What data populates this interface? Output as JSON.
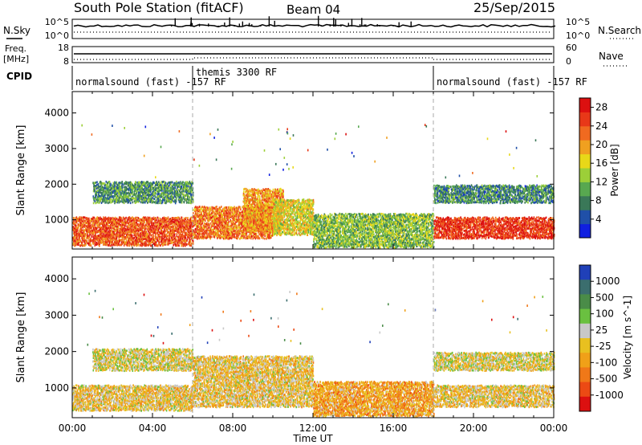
{
  "header": {
    "station": "South Pole Station (fitACF)",
    "beam": "Beam 04",
    "date": "25/Sep/2015"
  },
  "strip_labels": {
    "nsky": "N.Sky",
    "nsky_top": "10^5",
    "nsky_bottom": "10^0",
    "nsearch": "N.Search",
    "nsearch_top": "10^5",
    "nsearch_bottom": "10^0",
    "freq_line1": "Freq.",
    "freq_line2": "[MHz]",
    "freq_top": "18",
    "freq_bottom": "8",
    "nave": "Nave",
    "nave_top": "60",
    "nave_bottom": "0",
    "cpid": "CPID"
  },
  "cpid_segments": [
    {
      "label": "normalsound (fast) -157 RF",
      "start_hour": 0
    },
    {
      "label": "themis 3300 RF",
      "start_hour": 6
    },
    {
      "label": "normalsound (fast) -157 RF",
      "start_hour": 18
    }
  ],
  "axis": {
    "xlabel": "Time UT",
    "ylabel": "Slant Range [km]",
    "x_ticks": [
      "00:00",
      "04:00",
      "08:00",
      "12:00",
      "16:00",
      "20:00",
      "00:00"
    ],
    "y_ticks": [
      "1000",
      "2000",
      "3000",
      "4000"
    ]
  },
  "colorbars": {
    "power": {
      "label": "Power [dB]",
      "ticks": [
        "4",
        "8",
        "12",
        "16",
        "20",
        "24",
        "28"
      ],
      "colors": [
        "#1020e0",
        "#2050a8",
        "#3a7858",
        "#58a850",
        "#9ccf38",
        "#e8d818",
        "#f0a020",
        "#f06a20",
        "#e83818",
        "#dc1010"
      ]
    },
    "velocity": {
      "label": "Velocity [m s^-1]",
      "ticks": [
        "1000",
        "500",
        "100",
        "25",
        "-25",
        "-100",
        "-500",
        "-1000"
      ],
      "colors": [
        "#2040b8",
        "#3b6e6e",
        "#4a8c48",
        "#6ac040",
        "#c8c8c8",
        "#e8c020",
        "#f0a018",
        "#f07818",
        "#ec4a14",
        "#dc1010"
      ]
    }
  },
  "chart_data": [
    {
      "type": "heatmap",
      "title": "Power",
      "xlabel": "Time UT",
      "ylabel": "Slant Range [km]",
      "xlim": [
        0,
        24
      ],
      "ylim": [
        180,
        4600
      ],
      "colorbar_range": [
        0,
        30
      ],
      "regions": [
        {
          "hours": [
            0,
            6
          ],
          "range_km": [
            300,
            1100
          ],
          "value": 24
        },
        {
          "hours": [
            1,
            6
          ],
          "range_km": [
            1500,
            2100
          ],
          "value": 9
        },
        {
          "hours": [
            6,
            10
          ],
          "range_km": [
            500,
            1400
          ],
          "value": 22
        },
        {
          "hours": [
            8.5,
            10.5
          ],
          "range_km": [
            700,
            1900
          ],
          "value": 20
        },
        {
          "hours": [
            10,
            12
          ],
          "range_km": [
            600,
            1600
          ],
          "value": 16
        },
        {
          "hours": [
            12,
            18
          ],
          "range_km": [
            250,
            1200
          ],
          "value": 12
        },
        {
          "hours": [
            18,
            24
          ],
          "range_km": [
            500,
            1100
          ],
          "value": 26
        },
        {
          "hours": [
            18,
            24
          ],
          "range_km": [
            1500,
            2000
          ],
          "value": 8
        }
      ]
    },
    {
      "type": "heatmap",
      "title": "Velocity",
      "xlabel": "Time UT",
      "ylabel": "Slant Range [km]",
      "xlim": [
        0,
        24
      ],
      "ylim": [
        180,
        4600
      ],
      "colorbar_range": [
        -1000,
        1000
      ],
      "regions": [
        {
          "hours": [
            0,
            6
          ],
          "range_km": [
            400,
            1100
          ],
          "value": -100
        },
        {
          "hours": [
            1,
            6
          ],
          "range_km": [
            1500,
            2100
          ],
          "value": 0
        },
        {
          "hours": [
            6,
            12
          ],
          "range_km": [
            500,
            1900
          ],
          "value": -100
        },
        {
          "hours": [
            12,
            18
          ],
          "range_km": [
            250,
            1200
          ],
          "value": -300
        },
        {
          "hours": [
            18,
            24
          ],
          "range_km": [
            500,
            1100
          ],
          "value": -100
        },
        {
          "hours": [
            18,
            24
          ],
          "range_km": [
            1500,
            2000
          ],
          "value": 0
        }
      ]
    }
  ]
}
